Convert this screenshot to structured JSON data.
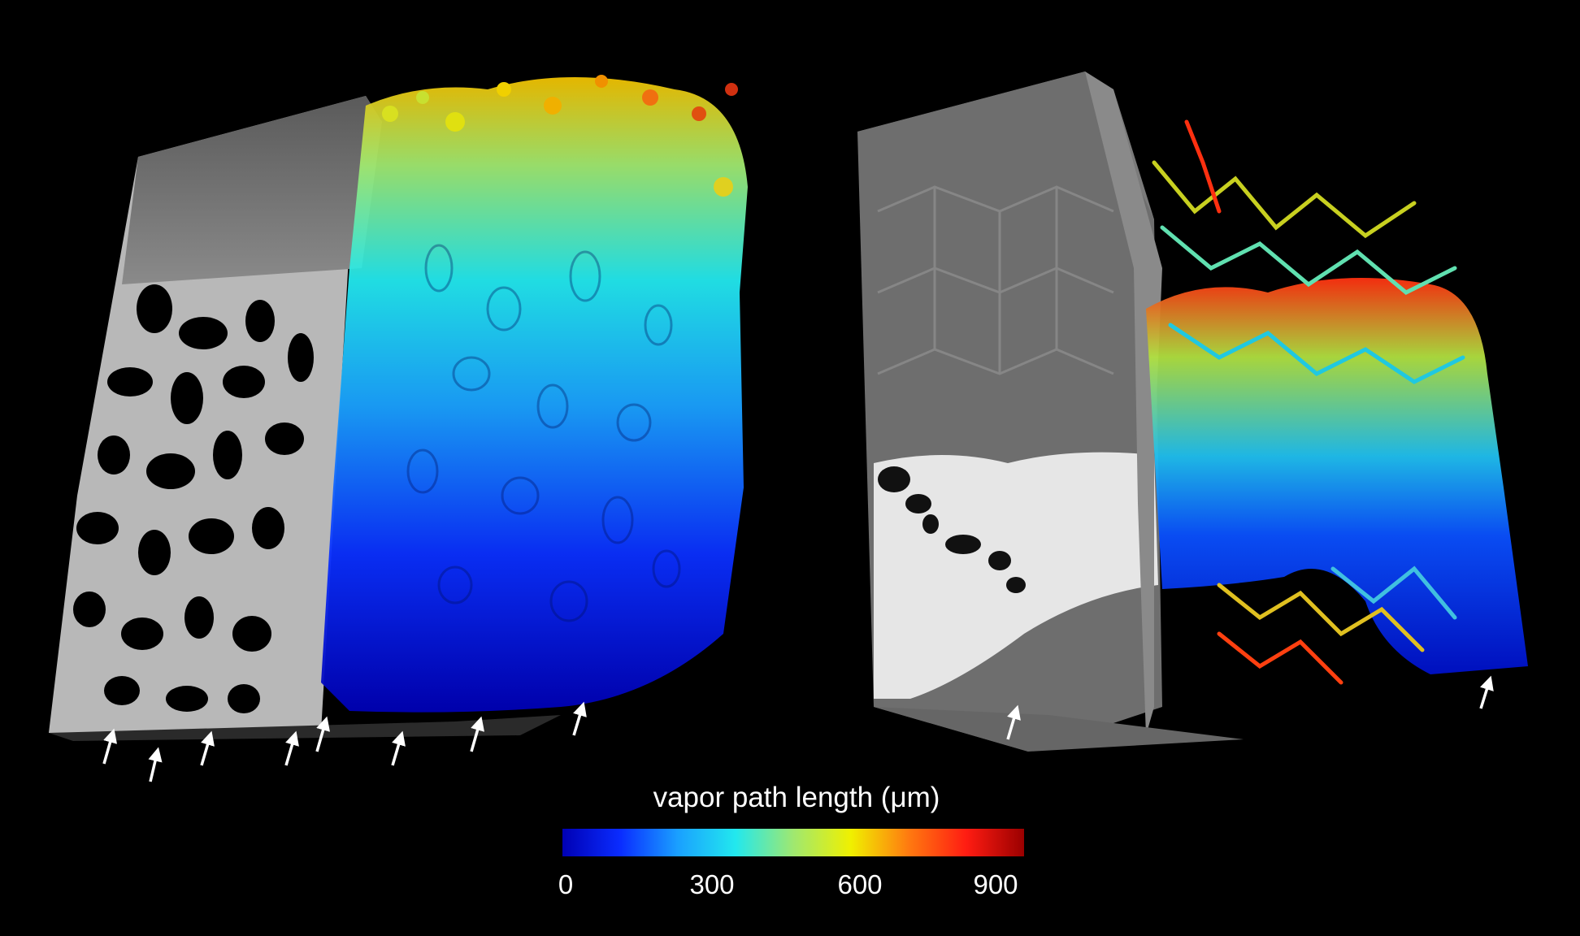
{
  "colorbar": {
    "title": "vapor path length (μm)",
    "ticks": [
      "0",
      "300",
      "600",
      "900"
    ],
    "range": [
      0,
      1000
    ],
    "stops": [
      "#0000b4",
      "#0a2cff",
      "#1aa0ff",
      "#22e8ee",
      "#9fe870",
      "#f0f000",
      "#ff7a10",
      "#ff1c12",
      "#9a0000"
    ]
  }
}
